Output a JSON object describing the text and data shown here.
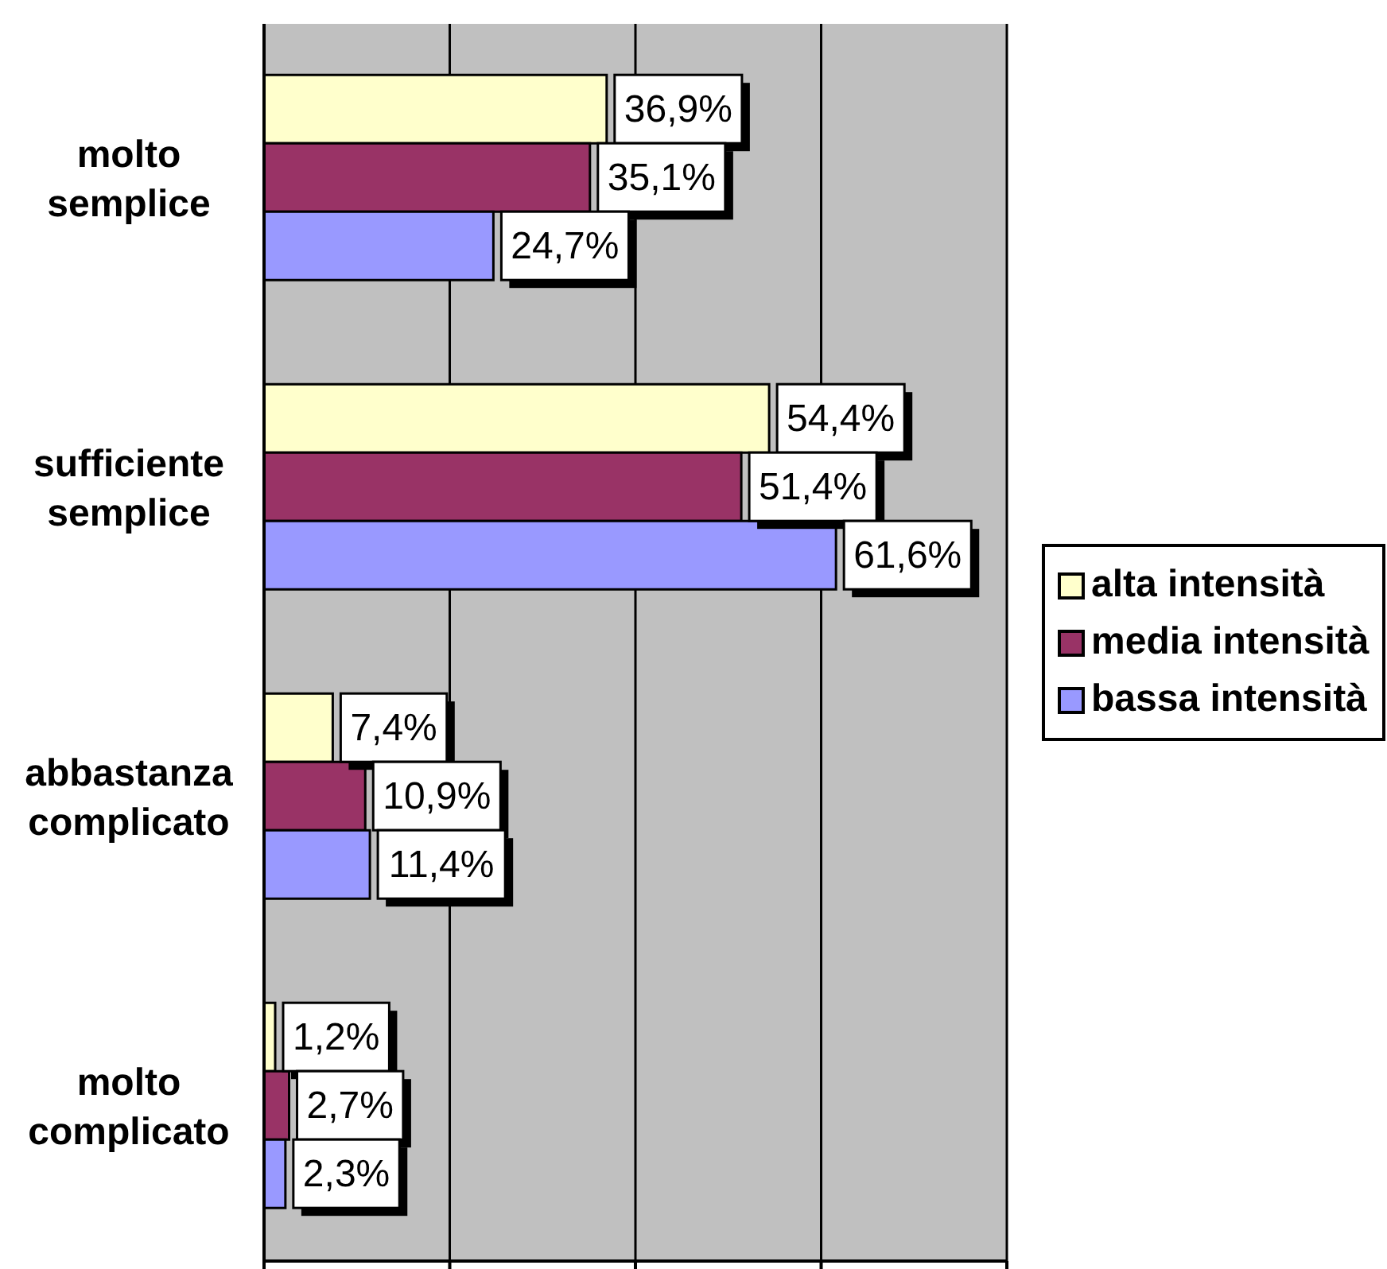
{
  "chart_data": {
    "type": "bar",
    "orientation": "horizontal",
    "categories": [
      "molto semplice",
      "sufficiente semplice",
      "abbastanza complicato",
      "molto complicato"
    ],
    "series": [
      {
        "name": "alta intensità",
        "color": "#ffffcc",
        "values": [
          36.9,
          54.4,
          7.4,
          1.2
        ],
        "value_labels": [
          "36,9%",
          "54,4%",
          "7,4%",
          "1,2%"
        ]
      },
      {
        "name": "media intensità",
        "color": "#993366",
        "values": [
          35.1,
          51.4,
          10.9,
          2.7
        ],
        "value_labels": [
          "35,1%",
          "51,4%",
          "10,9%",
          "2,7%"
        ]
      },
      {
        "name": "bassa intensità",
        "color": "#9999ff",
        "values": [
          24.7,
          61.6,
          11.4,
          2.3
        ],
        "value_labels": [
          "24,7%",
          "61,6%",
          "11,4%",
          "2,3%"
        ]
      }
    ],
    "xlim": [
      0,
      80
    ],
    "xticks": [
      {
        "value": 0,
        "label": null
      },
      {
        "value": 20,
        "label": null
      },
      {
        "value": 40,
        "label": null
      },
      {
        "value": 60,
        "label": null
      },
      {
        "value": 80,
        "label": null
      }
    ],
    "grid": "x",
    "legend": "right",
    "tick_labels": "y"
  }
}
